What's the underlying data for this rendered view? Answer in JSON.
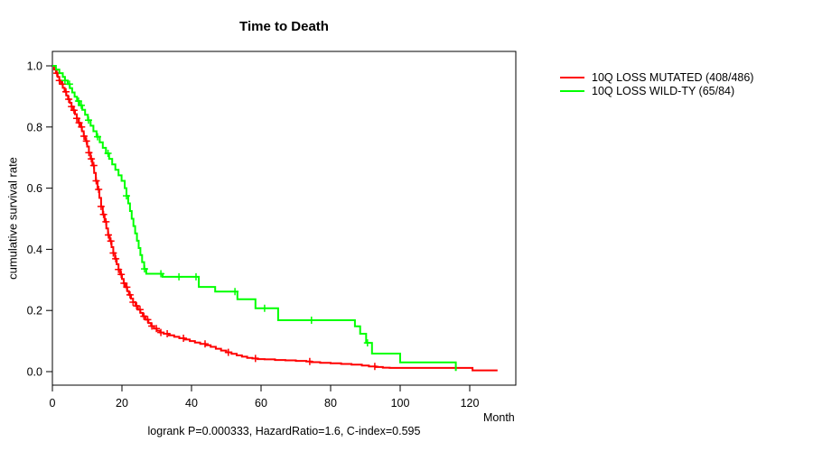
{
  "chart_data": {
    "type": "line",
    "subtype": "kaplan-meier-step-curves",
    "title": "Time to Death",
    "xlabel": "Month",
    "ylabel": "cumulative survival rate",
    "annotation": "logrank P=0.000333, HazardRatio=1.6, C-index=0.595",
    "grid": false,
    "legend_position": "right-outside",
    "xlim": [
      0,
      134
    ],
    "ylim": [
      0,
      1.0
    ],
    "xticks": [
      0,
      20,
      40,
      60,
      80,
      100,
      120
    ],
    "yticks": [
      {
        "v": 0.0,
        "label": "0.0"
      },
      {
        "v": 0.2,
        "label": "0.2"
      },
      {
        "v": 0.4,
        "label": "0.4"
      },
      {
        "v": 0.6,
        "label": "0.6"
      },
      {
        "v": 0.8,
        "label": "0.8"
      },
      {
        "v": 1.0,
        "label": "1.0"
      }
    ],
    "series": [
      {
        "name": "10Q LOSS MUTATED (408/486)",
        "color": "#ff0000",
        "steps": [
          [
            0,
            1.0
          ],
          [
            0.5,
            0.988
          ],
          [
            1,
            0.976
          ],
          [
            1.5,
            0.964
          ],
          [
            2,
            0.952
          ],
          [
            2.5,
            0.94
          ],
          [
            3,
            0.928
          ],
          [
            3.5,
            0.915
          ],
          [
            4,
            0.903
          ],
          [
            4.5,
            0.891
          ],
          [
            5,
            0.879
          ],
          [
            5.5,
            0.867
          ],
          [
            6,
            0.855
          ],
          [
            6.5,
            0.842
          ],
          [
            7,
            0.828
          ],
          [
            7.5,
            0.814
          ],
          [
            8,
            0.8
          ],
          [
            8.5,
            0.786
          ],
          [
            9,
            0.77
          ],
          [
            9.5,
            0.754
          ],
          [
            10,
            0.736
          ],
          [
            10.5,
            0.716
          ],
          [
            11,
            0.696
          ],
          [
            11.5,
            0.674
          ],
          [
            12,
            0.65
          ],
          [
            12.5,
            0.624
          ],
          [
            13,
            0.596
          ],
          [
            13.5,
            0.568
          ],
          [
            14,
            0.54
          ],
          [
            14.5,
            0.514
          ],
          [
            15,
            0.49
          ],
          [
            15.5,
            0.468
          ],
          [
            16,
            0.447
          ],
          [
            16.5,
            0.427
          ],
          [
            17,
            0.407
          ],
          [
            17.5,
            0.388
          ],
          [
            18,
            0.369
          ],
          [
            18.5,
            0.351
          ],
          [
            19,
            0.334
          ],
          [
            19.5,
            0.318
          ],
          [
            20,
            0.303
          ],
          [
            20.5,
            0.289
          ],
          [
            21,
            0.276
          ],
          [
            21.5,
            0.263
          ],
          [
            22,
            0.251
          ],
          [
            22.6,
            0.239
          ],
          [
            23.2,
            0.227
          ],
          [
            23.9,
            0.215
          ],
          [
            24.6,
            0.203
          ],
          [
            25.3,
            0.192
          ],
          [
            26,
            0.181
          ],
          [
            26.8,
            0.17
          ],
          [
            27.6,
            0.159
          ],
          [
            28.4,
            0.149
          ],
          [
            29.2,
            0.141
          ],
          [
            30,
            0.134
          ],
          [
            31,
            0.128
          ],
          [
            32,
            0.124
          ],
          [
            33.5,
            0.119
          ],
          [
            35,
            0.114
          ],
          [
            36.5,
            0.109
          ],
          [
            38,
            0.105
          ],
          [
            39.5,
            0.1
          ],
          [
            41,
            0.095
          ],
          [
            42.5,
            0.091
          ],
          [
            44,
            0.086
          ],
          [
            45.5,
            0.081
          ],
          [
            47,
            0.075
          ],
          [
            48.5,
            0.069
          ],
          [
            50,
            0.063
          ],
          [
            51.5,
            0.058
          ],
          [
            53,
            0.053
          ],
          [
            54.5,
            0.049
          ],
          [
            56,
            0.045
          ],
          [
            57.5,
            0.043
          ],
          [
            59,
            0.041
          ],
          [
            61,
            0.04
          ],
          [
            64,
            0.038
          ],
          [
            67,
            0.037
          ],
          [
            70,
            0.035
          ],
          [
            73,
            0.033
          ],
          [
            74.5,
            0.031
          ],
          [
            77,
            0.029
          ],
          [
            80,
            0.027
          ],
          [
            83,
            0.025
          ],
          [
            86,
            0.023
          ],
          [
            89,
            0.02
          ],
          [
            91,
            0.017
          ],
          [
            93,
            0.015
          ],
          [
            95,
            0.013
          ],
          [
            97,
            0.012
          ],
          [
            120.8,
            0.004
          ],
          [
            128,
            0.004
          ]
        ],
        "censor_marks": [
          1.3,
          2,
          2.9,
          3.9,
          4.7,
          5.5,
          6.2,
          7,
          7.7,
          8.4,
          9.1,
          9.8,
          10.5,
          11.2,
          11.9,
          12.6,
          13.3,
          14,
          14.7,
          15.4,
          16.1,
          16.8,
          17.5,
          18.2,
          19,
          19.8,
          20.6,
          21.4,
          22.3,
          23.2,
          24.2,
          25.2,
          26.3,
          27.4,
          28.6,
          29.9,
          31.2,
          33,
          37.7,
          43.9,
          50.6,
          58.4,
          74,
          92.7
        ]
      },
      {
        "name": "10Q LOSS WILD-TY (65/84)",
        "color": "#00ff00",
        "steps": [
          [
            0,
            1.0
          ],
          [
            1,
            0.988
          ],
          [
            2,
            0.976
          ],
          [
            3,
            0.964
          ],
          [
            3.6,
            0.952
          ],
          [
            4.4,
            0.94
          ],
          [
            5,
            0.927
          ],
          [
            5.7,
            0.913
          ],
          [
            6.4,
            0.899
          ],
          [
            7.1,
            0.885
          ],
          [
            7.8,
            0.871
          ],
          [
            8.6,
            0.856
          ],
          [
            9.4,
            0.84
          ],
          [
            10.2,
            0.822
          ],
          [
            11,
            0.804
          ],
          [
            11.8,
            0.786
          ],
          [
            12.7,
            0.768
          ],
          [
            13.6,
            0.75
          ],
          [
            14.5,
            0.732
          ],
          [
            15.4,
            0.714
          ],
          [
            16.3,
            0.696
          ],
          [
            17.2,
            0.678
          ],
          [
            18.1,
            0.66
          ],
          [
            19,
            0.642
          ],
          [
            19.9,
            0.624
          ],
          [
            20.8,
            0.6
          ],
          [
            21.3,
            0.575
          ],
          [
            21.8,
            0.55
          ],
          [
            22.3,
            0.525
          ],
          [
            22.8,
            0.5
          ],
          [
            23.3,
            0.476
          ],
          [
            23.8,
            0.452
          ],
          [
            24.3,
            0.428
          ],
          [
            24.8,
            0.404
          ],
          [
            25.3,
            0.381
          ],
          [
            25.8,
            0.358
          ],
          [
            26.4,
            0.336
          ],
          [
            27,
            0.32
          ],
          [
            31.7,
            0.31
          ],
          [
            42.1,
            0.277
          ],
          [
            46.8,
            0.262
          ],
          [
            53.2,
            0.237
          ],
          [
            58.4,
            0.207
          ],
          [
            64.9,
            0.168
          ],
          [
            87,
            0.148
          ],
          [
            88.5,
            0.124
          ],
          [
            90.2,
            0.094
          ],
          [
            91.9,
            0.059
          ],
          [
            100,
            0.03
          ],
          [
            116,
            0.002
          ]
        ],
        "censor_marks": [
          3.6,
          4.9,
          7.5,
          8.3,
          10.4,
          13,
          16,
          21.3,
          26.5,
          31.2,
          36.4,
          41.3,
          52.5,
          61,
          74.5,
          90.6
        ]
      }
    ]
  }
}
